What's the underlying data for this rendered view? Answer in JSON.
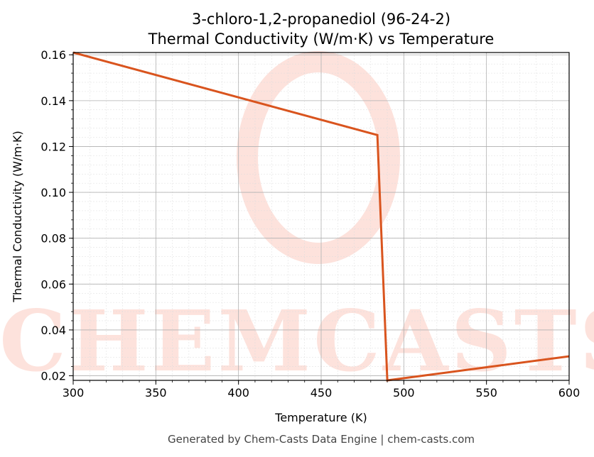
{
  "chart_data": {
    "type": "line",
    "title_line1": "3-chloro-1,2-propanediol (96-24-2)",
    "title_line2": "Thermal Conductivity (W/m·K) vs Temperature",
    "xlabel": "Temperature (K)",
    "ylabel": "Thermal Conductivity (W/m·K)",
    "xlim": [
      300,
      600
    ],
    "ylim": [
      0.018,
      0.161
    ],
    "x_ticks": [
      300,
      350,
      400,
      450,
      500,
      550,
      600
    ],
    "y_ticks": [
      0.02,
      0.04,
      0.06,
      0.08,
      0.1,
      0.12,
      0.14,
      0.16
    ],
    "grid": true,
    "series": [
      {
        "color": "#d9541e",
        "x": [
          300,
          484,
          490,
          600
        ],
        "y": [
          0.161,
          0.125,
          0.018,
          0.0285
        ]
      }
    ],
    "watermark": "CHEMCASTS",
    "watermark_color": "#fde2dc"
  },
  "footer": "Generated by Chem-Casts Data Engine | chem-casts.com"
}
